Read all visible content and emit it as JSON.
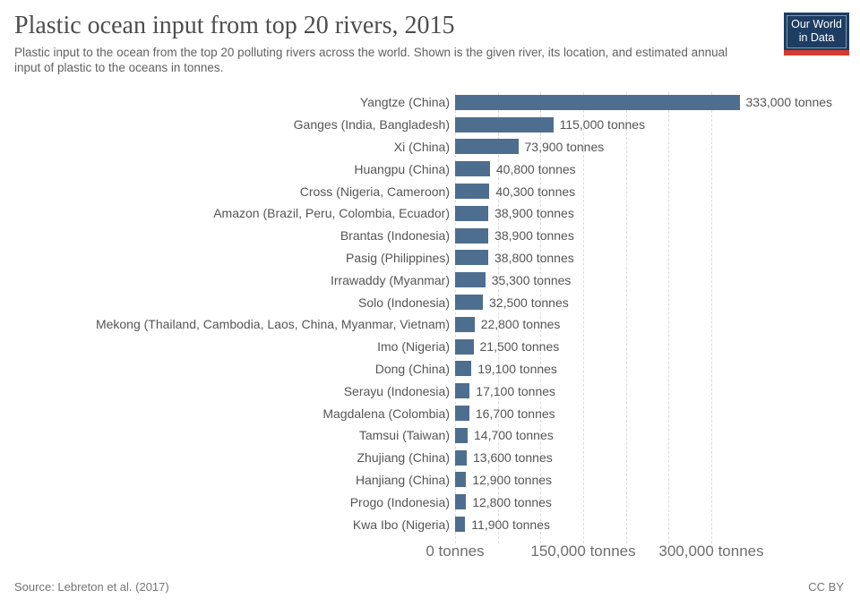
{
  "header": {
    "title": "Plastic ocean input from top 20 rivers, 2015",
    "subtitle": "Plastic input to the ocean from the top 20 polluting rivers across the world. Shown is the given river, its location, and estimated annual input of plastic to the oceans in tonnes.",
    "logo": {
      "line1": "Our World",
      "line2": "in Data"
    }
  },
  "footer": {
    "source": "Source: Lebreton et al. (2017)",
    "license": "CC BY"
  },
  "colors": {
    "bar": "#4e6e8f",
    "gridline": "#dcdcdc",
    "logo_bg": "#1d3d63",
    "logo_stripe": "#d13b32",
    "title_text": "#4e4e4e",
    "label_text": "#555555"
  },
  "chart_data": {
    "type": "bar",
    "orientation": "horizontal",
    "title": "Plastic ocean input from top 20 rivers, 2015",
    "unit": "tonnes",
    "xlim": [
      0,
      333000
    ],
    "grid": true,
    "gridline_step": 50000,
    "gridline_max": 300000,
    "x_ticks": [
      {
        "value": 0,
        "label": "0 tonnes"
      },
      {
        "value": 150000,
        "label": "150,000 tonnes"
      },
      {
        "value": 300000,
        "label": "300,000 tonnes"
      }
    ],
    "categories": [
      "Yangtze (China)",
      "Ganges (India, Bangladesh)",
      "Xi (China)",
      "Huangpu (China)",
      "Cross (Nigeria, Cameroon)",
      "Amazon (Brazil, Peru, Colombia, Ecuador)",
      "Brantas (Indonesia)",
      "Pasig (Philippines)",
      "Irrawaddy (Myanmar)",
      "Solo (Indonesia)",
      "Mekong (Thailand, Cambodia, Laos, China, Myanmar, Vietnam)",
      "Imo (Nigeria)",
      "Dong (China)",
      "Serayu (Indonesia)",
      "Magdalena (Colombia)",
      "Tamsui (Taiwan)",
      "Zhujiang (China)",
      "Hanjiang (China)",
      "Progo (Indonesia)",
      "Kwa Ibo (Nigeria)"
    ],
    "values": [
      333000,
      115000,
      73900,
      40800,
      40300,
      38900,
      38900,
      38800,
      35300,
      32500,
      22800,
      21500,
      19100,
      17100,
      16700,
      14700,
      13600,
      12900,
      12800,
      11900
    ],
    "value_labels": [
      "333,000 tonnes",
      "115,000 tonnes",
      "73,900 tonnes",
      "40,800 tonnes",
      "40,300 tonnes",
      "38,900 tonnes",
      "38,900 tonnes",
      "38,800 tonnes",
      "35,300 tonnes",
      "32,500 tonnes",
      "22,800 tonnes",
      "21,500 tonnes",
      "19,100 tonnes",
      "17,100 tonnes",
      "16,700 tonnes",
      "14,700 tonnes",
      "13,600 tonnes",
      "12,900 tonnes",
      "12,800 tonnes",
      "11,900 tonnes"
    ]
  }
}
